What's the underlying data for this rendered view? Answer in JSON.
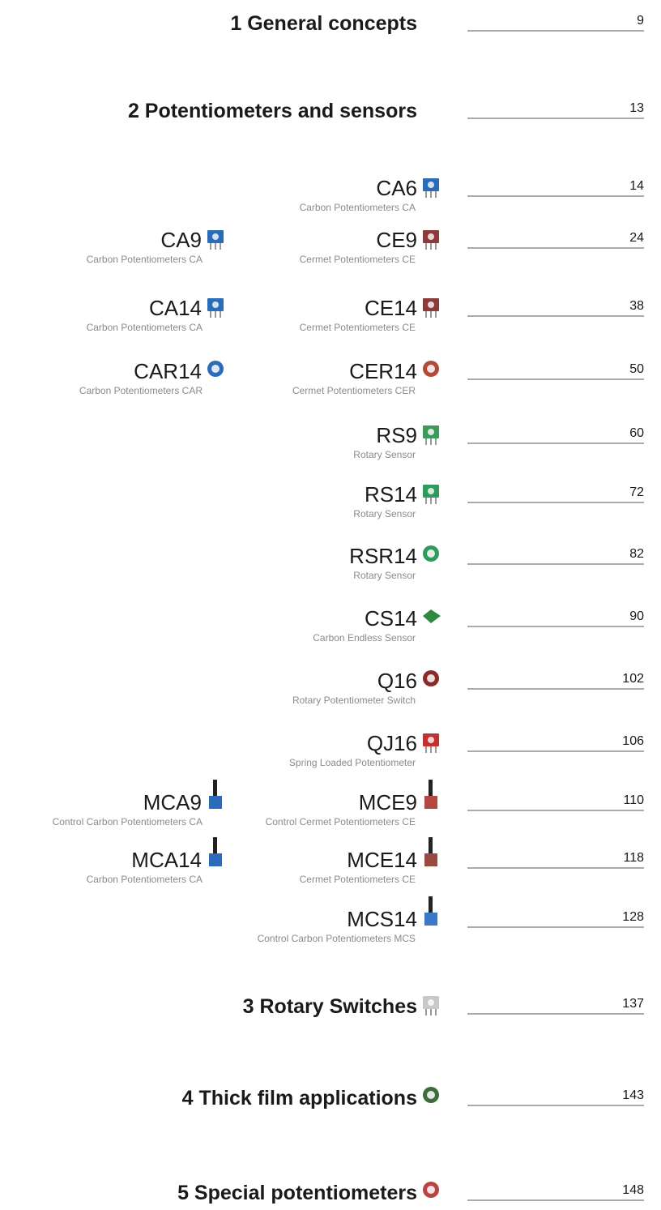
{
  "sections": [
    {
      "title": "1 General concepts",
      "page": 9
    },
    {
      "title": "2 Potentiometers and sensors",
      "page": 13,
      "items": [
        {
          "title": "CA6",
          "subtitle": "Carbon Potentiometers CA",
          "page": 14
        },
        {
          "title": "CE9",
          "subtitle": "Cermet Potentiometers CE",
          "page": 24,
          "left": {
            "title": "CA9",
            "subtitle": "Carbon Potentiometers CA"
          }
        },
        {
          "title": "CE14",
          "subtitle": "Cermet Potentiometers CE",
          "page": 38,
          "left": {
            "title": "CA14",
            "subtitle": "Carbon Potentiometers CA"
          }
        },
        {
          "title": "CER14",
          "subtitle": "Cermet Potentiometers CER",
          "page": 50,
          "left": {
            "title": "CAR14",
            "subtitle": "Carbon Potentiometers CAR"
          }
        },
        {
          "title": "RS9",
          "subtitle": "Rotary Sensor",
          "page": 60
        },
        {
          "title": "RS14",
          "subtitle": "Rotary Sensor",
          "page": 72
        },
        {
          "title": "RSR14",
          "subtitle": "Rotary Sensor",
          "page": 82
        },
        {
          "title": "CS14",
          "subtitle": "Carbon Endless Sensor",
          "page": 90
        },
        {
          "title": "Q16",
          "subtitle": "Rotary Potentiometer Switch",
          "page": 102
        },
        {
          "title": "QJ16",
          "subtitle": "Spring Loaded Potentiometer",
          "page": 106
        },
        {
          "title": "MCE9",
          "subtitle": "Control Cermet Potentiometers CE",
          "page": 110,
          "left": {
            "title": "MCA9",
            "subtitle": "Control Carbon Potentiometers CA"
          }
        },
        {
          "title": "MCE14",
          "subtitle": "Cermet Potentiometers CE",
          "page": 118,
          "left": {
            "title": "MCA14",
            "subtitle": "Carbon Potentiometers CA"
          }
        },
        {
          "title": "MCS14",
          "subtitle": "Control Carbon Potentiometers MCS",
          "page": 128
        }
      ]
    },
    {
      "title": "3 Rotary Switches",
      "page": 137
    },
    {
      "title": "4 Thick film applications",
      "page": 143
    },
    {
      "title": "5 Special potentiometers",
      "page": 148
    }
  ]
}
